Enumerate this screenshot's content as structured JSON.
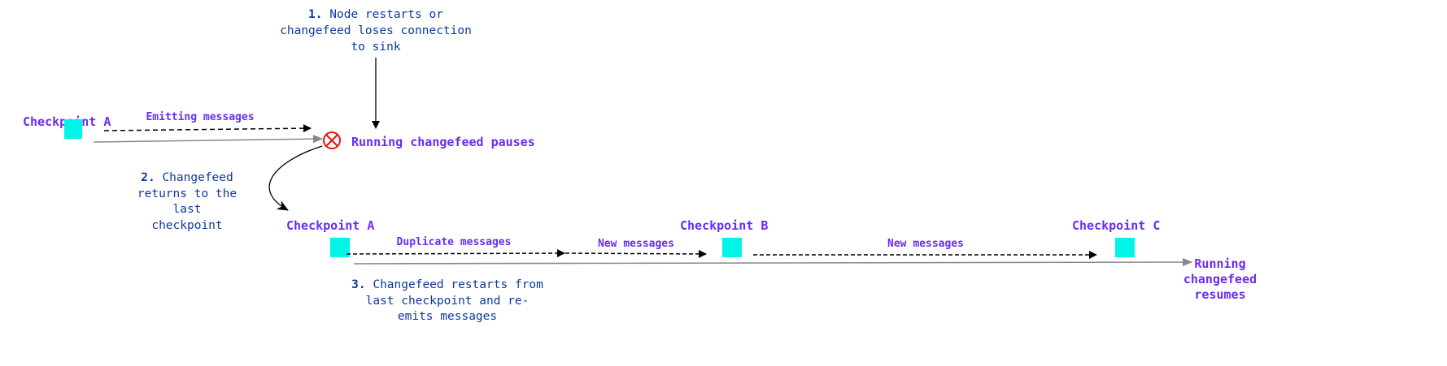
{
  "colors": {
    "label": "#6a2cf5",
    "note": "#0b3a9e",
    "checkpoint": "#00f5e6",
    "error": "#ee1111",
    "timeline": "#888888",
    "arrow": "#000000"
  },
  "step1": {
    "num": "1.",
    "line1": "Node restarts or",
    "line2": "changefeed loses connection",
    "line3": "to sink"
  },
  "top_row": {
    "checkpoint": "Checkpoint A",
    "emitting": "Emitting messages",
    "pause_icon": "error-x-circle-icon",
    "pause_label": "Running changefeed pauses"
  },
  "step2": {
    "num": "2.",
    "line1": "Changefeed",
    "line2": "returns to the",
    "line3": "last",
    "line4": "checkpoint"
  },
  "bottom_row": {
    "checkpoints": [
      "Checkpoint A",
      "Checkpoint B",
      "Checkpoint C"
    ],
    "duplicate": "Duplicate messages",
    "new1": "New messages",
    "new2": "New messages",
    "resume_line1": "Running",
    "resume_line2": "changefeed",
    "resume_line3": "resumes"
  },
  "step3": {
    "num": "3.",
    "line1": "Changefeed restarts from",
    "line2": "last checkpoint and re-",
    "line3": "emits messages"
  }
}
